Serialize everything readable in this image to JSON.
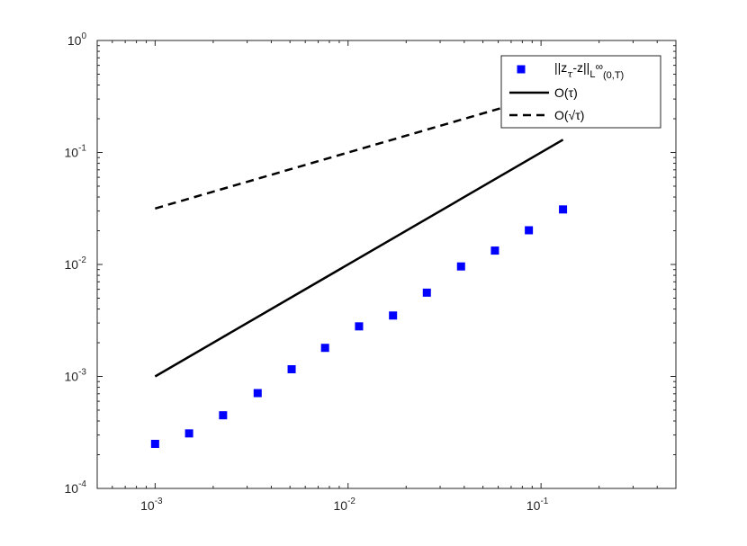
{
  "chart_data": {
    "type": "line",
    "xscale": "log",
    "yscale": "log",
    "xlim": [
      0.000501,
      0.5
    ],
    "ylim": [
      0.0001,
      1
    ],
    "grid": false,
    "legend_position": "top-right",
    "x_ticks": [
      {
        "value": 0.001,
        "base": "10",
        "exp": "-3"
      },
      {
        "value": 0.01,
        "base": "10",
        "exp": "-2"
      },
      {
        "value": 0.1,
        "base": "10",
        "exp": "-1"
      }
    ],
    "y_ticks": [
      {
        "value": 0.0001,
        "base": "10",
        "exp": "-4"
      },
      {
        "value": 0.001,
        "base": "10",
        "exp": "-3"
      },
      {
        "value": 0.01,
        "base": "10",
        "exp": "-2"
      },
      {
        "value": 0.1,
        "base": "10",
        "exp": "-1"
      },
      {
        "value": 1,
        "base": "10",
        "exp": "0"
      }
    ],
    "series": [
      {
        "name": "||z_τ-z||_L∞(0,T)",
        "style": "markers",
        "marker": "square",
        "color": "#0000ff",
        "x": [
          0.001,
          0.0015,
          0.00225,
          0.0034,
          0.0051,
          0.0076,
          0.0114,
          0.0171,
          0.0256,
          0.0385,
          0.0577,
          0.0865,
          0.13
        ],
        "y": [
          0.00025,
          0.00031,
          0.00045,
          0.00071,
          0.00116,
          0.0018,
          0.0028,
          0.0035,
          0.0056,
          0.0096,
          0.0133,
          0.0202,
          0.031
        ]
      },
      {
        "name": "O(τ)",
        "style": "solid",
        "color": "#000000",
        "x": [
          0.001,
          0.13
        ],
        "y": [
          0.001,
          0.13
        ]
      },
      {
        "name": "O(√τ)",
        "style": "dashed",
        "color": "#000000",
        "x": [
          0.001,
          0.13
        ],
        "y": [
          0.0316,
          0.36
        ]
      }
    ],
    "legend": {
      "entries": [
        {
          "prefix": "||z",
          "sub": "τ",
          "mid": "-z||",
          "sub2": "L",
          "sup": "∞",
          "sub3": "(0,T)"
        },
        {
          "text": "O(τ)"
        },
        {
          "text": "O(√τ)"
        }
      ]
    }
  }
}
